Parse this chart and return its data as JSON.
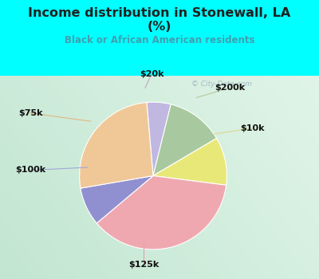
{
  "title_line1": "Income distribution in Stonewall, LA",
  "title_line2": "(%)",
  "subtitle": "Black or African American residents",
  "labels": [
    "$20k",
    "$200k",
    "$10k",
    "$125k",
    "$100k",
    "$75k"
  ],
  "sizes": [
    5,
    12,
    10,
    35,
    8,
    25
  ],
  "colors": [
    "#c0b8e0",
    "#a8c8a0",
    "#e8e878",
    "#f0a8b0",
    "#9090d0",
    "#f0c898"
  ],
  "bg_cyan": "#00ffff",
  "bg_chart_tl": "#d0ede0",
  "bg_chart_br": "#c8e8d8",
  "title_color": "#202020",
  "subtitle_color": "#40a0b0",
  "label_color": "#101010",
  "startangle": 95,
  "watermark": "City-Data.com"
}
